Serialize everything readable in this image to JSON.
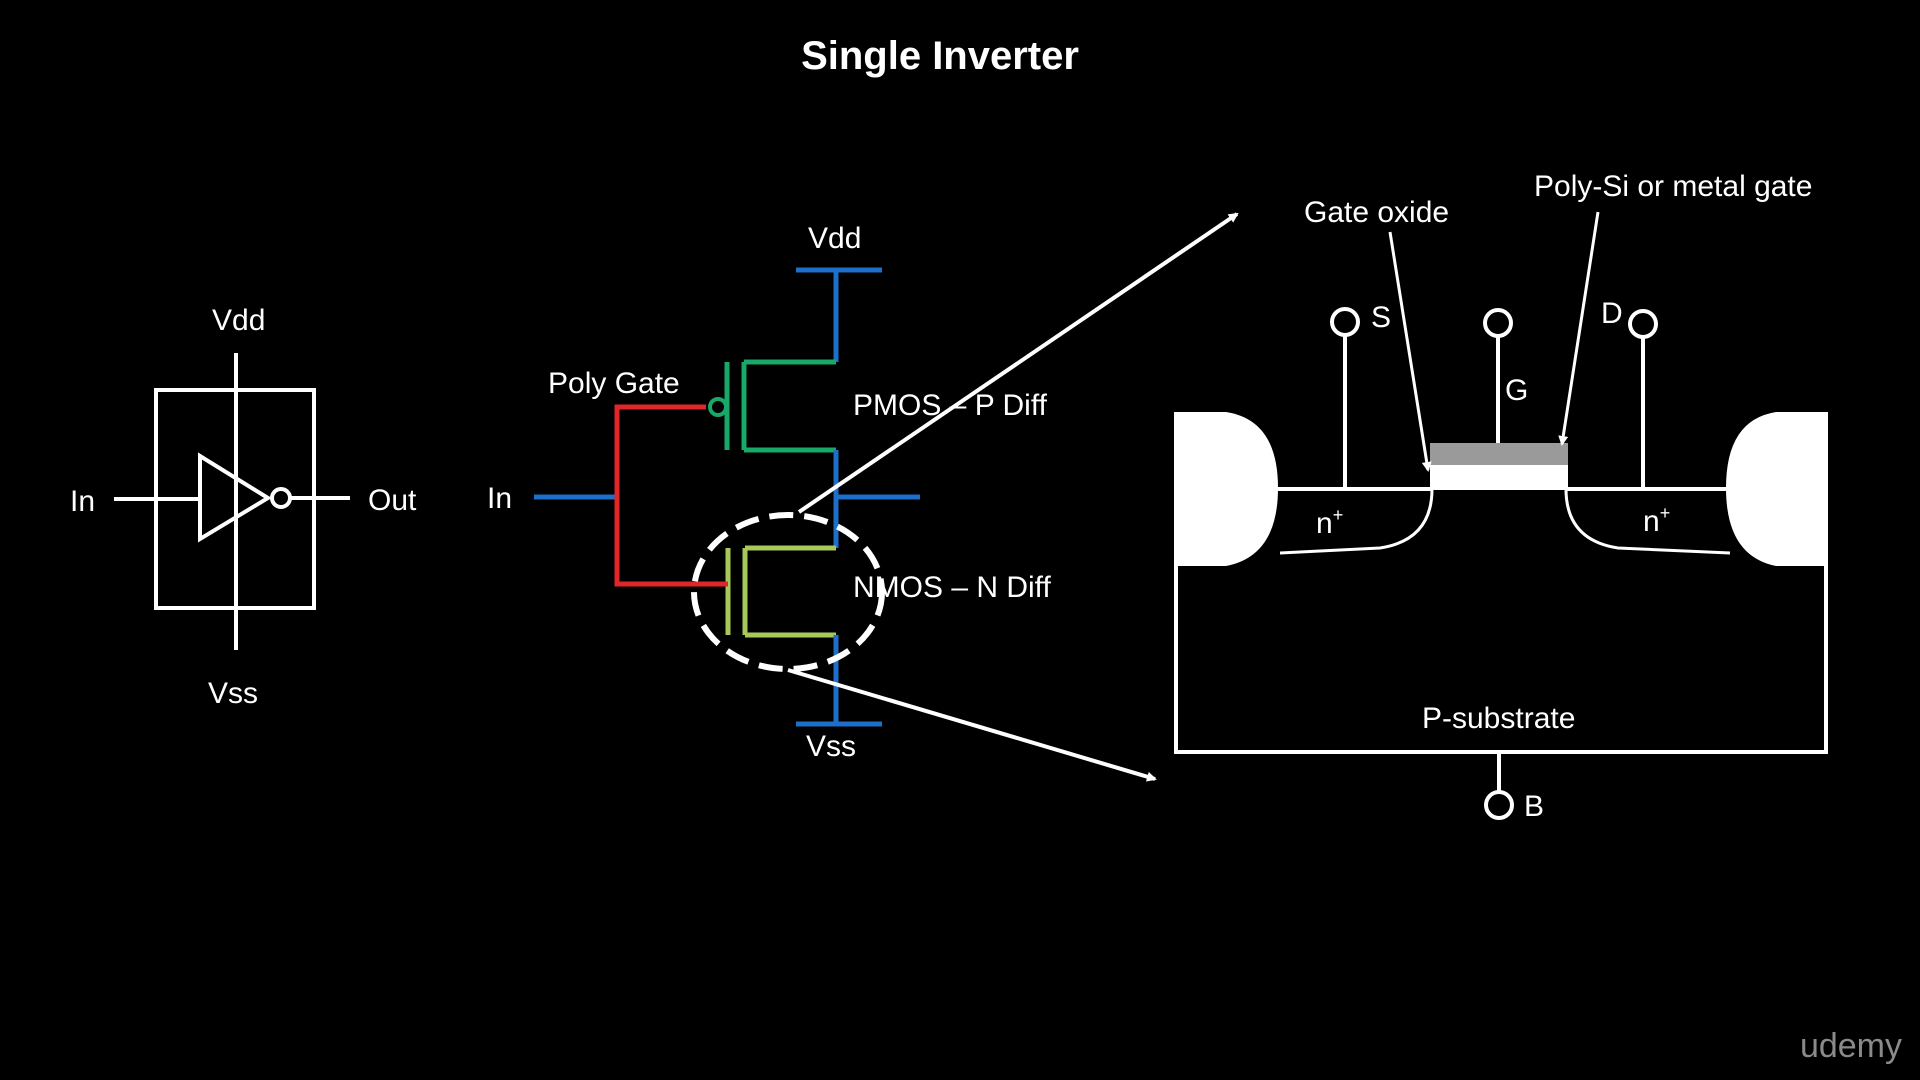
{
  "title": "Single Inverter",
  "watermark": "udemy",
  "colors": {
    "background": "#000000",
    "supply_wire": "#1d6fc9",
    "pmos": "#18a868",
    "nmos": "#a9c85a",
    "poly_gate": "#e02626",
    "gate_poly_fill": "#9a9a9a"
  },
  "symbol": {
    "vdd": "Vdd",
    "vss": "Vss",
    "in": "In",
    "out": "Out"
  },
  "circuit": {
    "vdd": "Vdd",
    "vss": "Vss",
    "in": "In",
    "poly_gate": "Poly Gate",
    "pmos": "PMOS – P Diff",
    "nmos": "NMOS – N Diff"
  },
  "cross_section": {
    "gate_oxide": "Gate oxide",
    "poly_gate": "Poly-Si or metal gate",
    "source": "S",
    "gate": "G",
    "drain": "D",
    "bulk": "B",
    "n_left": "n",
    "n_right": "n",
    "plus": "+",
    "substrate": "P-substrate"
  }
}
